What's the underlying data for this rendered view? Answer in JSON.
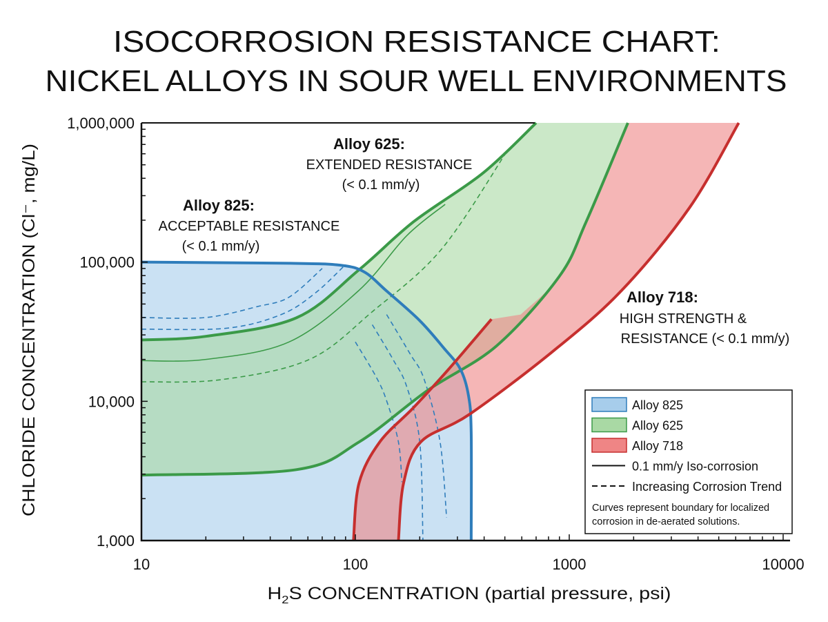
{
  "chart_data": {
    "type": "area",
    "title": [
      "ISOCORROSION RESISTANCE CHART:",
      "NICKEL ALLOYS IN SOUR WELL ENVIRONMENTS"
    ],
    "xlabel": {
      "pre": "H",
      "sub": "2",
      "post": "S CONCENTRATION (partial pressure, psi)"
    },
    "ylabel": "CHLORIDE CONCENTRATION (Cl⁻, mg/L)",
    "xscale": "log",
    "yscale": "log",
    "xlim": [
      10,
      10000
    ],
    "ylim": [
      1000,
      1000000
    ],
    "xticks": [
      {
        "v": 10,
        "label": "10"
      },
      {
        "v": 100,
        "label": "100"
      },
      {
        "v": 1000,
        "label": "1000"
      },
      {
        "v": 10000,
        "label": "10000"
      }
    ],
    "yticks": [
      {
        "v": 1000,
        "label": "1,000"
      },
      {
        "v": 10000,
        "label": "10,000"
      },
      {
        "v": 100000,
        "label": "100,000"
      },
      {
        "v": 1000000,
        "label": "1,000,000"
      }
    ],
    "grid": false,
    "colors": {
      "alloy825_line": "#2f7dbb",
      "alloy825_fill": "#a7cdeb",
      "alloy625_line": "#3b9a48",
      "alloy625_fill": "#a9d9a4",
      "alloy718_line": "#c62f2e",
      "alloy718_fill": "#ef8585"
    },
    "series": [
      {
        "name": "Alloy 825",
        "boundary": [
          [
            10,
            100000
          ],
          [
            50,
            98000
          ],
          [
            85,
            95000
          ],
          [
            110,
            85000
          ],
          [
            140,
            62000
          ],
          [
            200,
            38000
          ],
          [
            260,
            24000
          ],
          [
            310,
            17000
          ],
          [
            338,
            11000
          ],
          [
            348,
            6000
          ],
          [
            348,
            1000
          ]
        ],
        "trend_dashed": [
          [
            [
              10,
              40000
            ],
            [
              20,
              40000
            ],
            [
              35,
              48000
            ],
            [
              49,
              56000
            ],
            [
              70,
              90000
            ]
          ],
          [
            [
              10,
              33000
            ],
            [
              25,
              33500
            ],
            [
              45,
              42000
            ],
            [
              65,
              60000
            ],
            [
              90,
              96000
            ]
          ],
          [
            [
              100,
              26700
            ],
            [
              125,
              15000
            ],
            [
              140,
              10100
            ],
            [
              159,
              5100
            ],
            [
              165,
              2630
            ]
          ],
          [
            [
              120,
              35500
            ],
            [
              150,
              20000
            ],
            [
              174,
              12700
            ],
            [
              200,
              5100
            ],
            [
              207,
              1000
            ]
          ],
          [
            [
              140,
              42000
            ],
            [
              180,
              22000
            ],
            [
              210,
              14300
            ],
            [
              249,
              5100
            ],
            [
              267,
              1460
            ]
          ]
        ]
      },
      {
        "name": "Alloy 625",
        "upper": [
          [
            10,
            27600
          ],
          [
            20,
            29300
          ],
          [
            53,
            39800
          ],
          [
            104,
            88000
          ],
          [
            188,
            196000
          ],
          [
            395,
            436000
          ],
          [
            700,
            1000000
          ]
        ],
        "lower": [
          [
            10,
            2950
          ],
          [
            53,
            3230
          ],
          [
            104,
            5100
          ],
          [
            218,
            12000
          ],
          [
            457,
            25000
          ],
          [
            896,
            78500
          ],
          [
            1200,
            195000
          ],
          [
            1880,
            1000000
          ]
        ],
        "iso_solid": [
          [
            10,
            19600
          ],
          [
            20,
            20000
          ],
          [
            49,
            26700
          ],
          [
            104,
            62700
          ],
          [
            174,
            155000
          ],
          [
            263,
            260000
          ]
        ],
        "trend_dashed": [
          [
            10,
            13800
          ],
          [
            23.5,
            14300
          ],
          [
            61,
            20000
          ],
          [
            121,
            44500
          ],
          [
            253,
            124000
          ],
          [
            512,
            627000
          ]
        ]
      },
      {
        "name": "Alloy 718",
        "left": [
          [
            98,
            1000
          ],
          [
            104,
            2580
          ],
          [
            130,
            5100
          ],
          [
            187,
            9000
          ],
          [
            272,
            16900
          ],
          [
            433,
            38900
          ]
        ],
        "right": [
          [
            159,
            1000
          ],
          [
            168,
            2580
          ],
          [
            202,
            5100
          ],
          [
            341,
            8050
          ],
          [
            828,
            22500
          ],
          [
            1760,
            62700
          ],
          [
            3650,
            246000
          ],
          [
            6200,
            1000000
          ]
        ],
        "fill_upper": [
          [
            593,
            42000
          ],
          [
            896,
            78500
          ],
          [
            1200,
            195000
          ],
          [
            1880,
            1000000
          ]
        ]
      }
    ],
    "annotations": [
      {
        "id": "825",
        "lines": [
          "Alloy 825:",
          "ACCEPTABLE RESISTANCE",
          "(< 0.1 mm/y)"
        ]
      },
      {
        "id": "625",
        "lines": [
          "Alloy 625:",
          "EXTENDED RESISTANCE",
          "(< 0.1 mm/y)"
        ]
      },
      {
        "id": "718",
        "lines": [
          "Alloy 718:",
          "HIGH STRENGTH &",
          "RESISTANCE (< 0.1 mm/y)"
        ]
      }
    ],
    "legend": {
      "placement": "bottom-right",
      "entries": [
        {
          "label": "Alloy 825",
          "kind": "swatch",
          "color": "blue"
        },
        {
          "label": "Alloy 625",
          "kind": "swatch",
          "color": "green"
        },
        {
          "label": "Alloy 718",
          "kind": "swatch",
          "color": "red"
        },
        {
          "label": "0.1 mm/y Iso-corrosion",
          "kind": "solid"
        },
        {
          "label": "Increasing Corrosion Trend",
          "kind": "dashed"
        }
      ],
      "note": [
        "Curves represent boundary for localized",
        "corrosion in de-aerated solutions."
      ]
    }
  }
}
